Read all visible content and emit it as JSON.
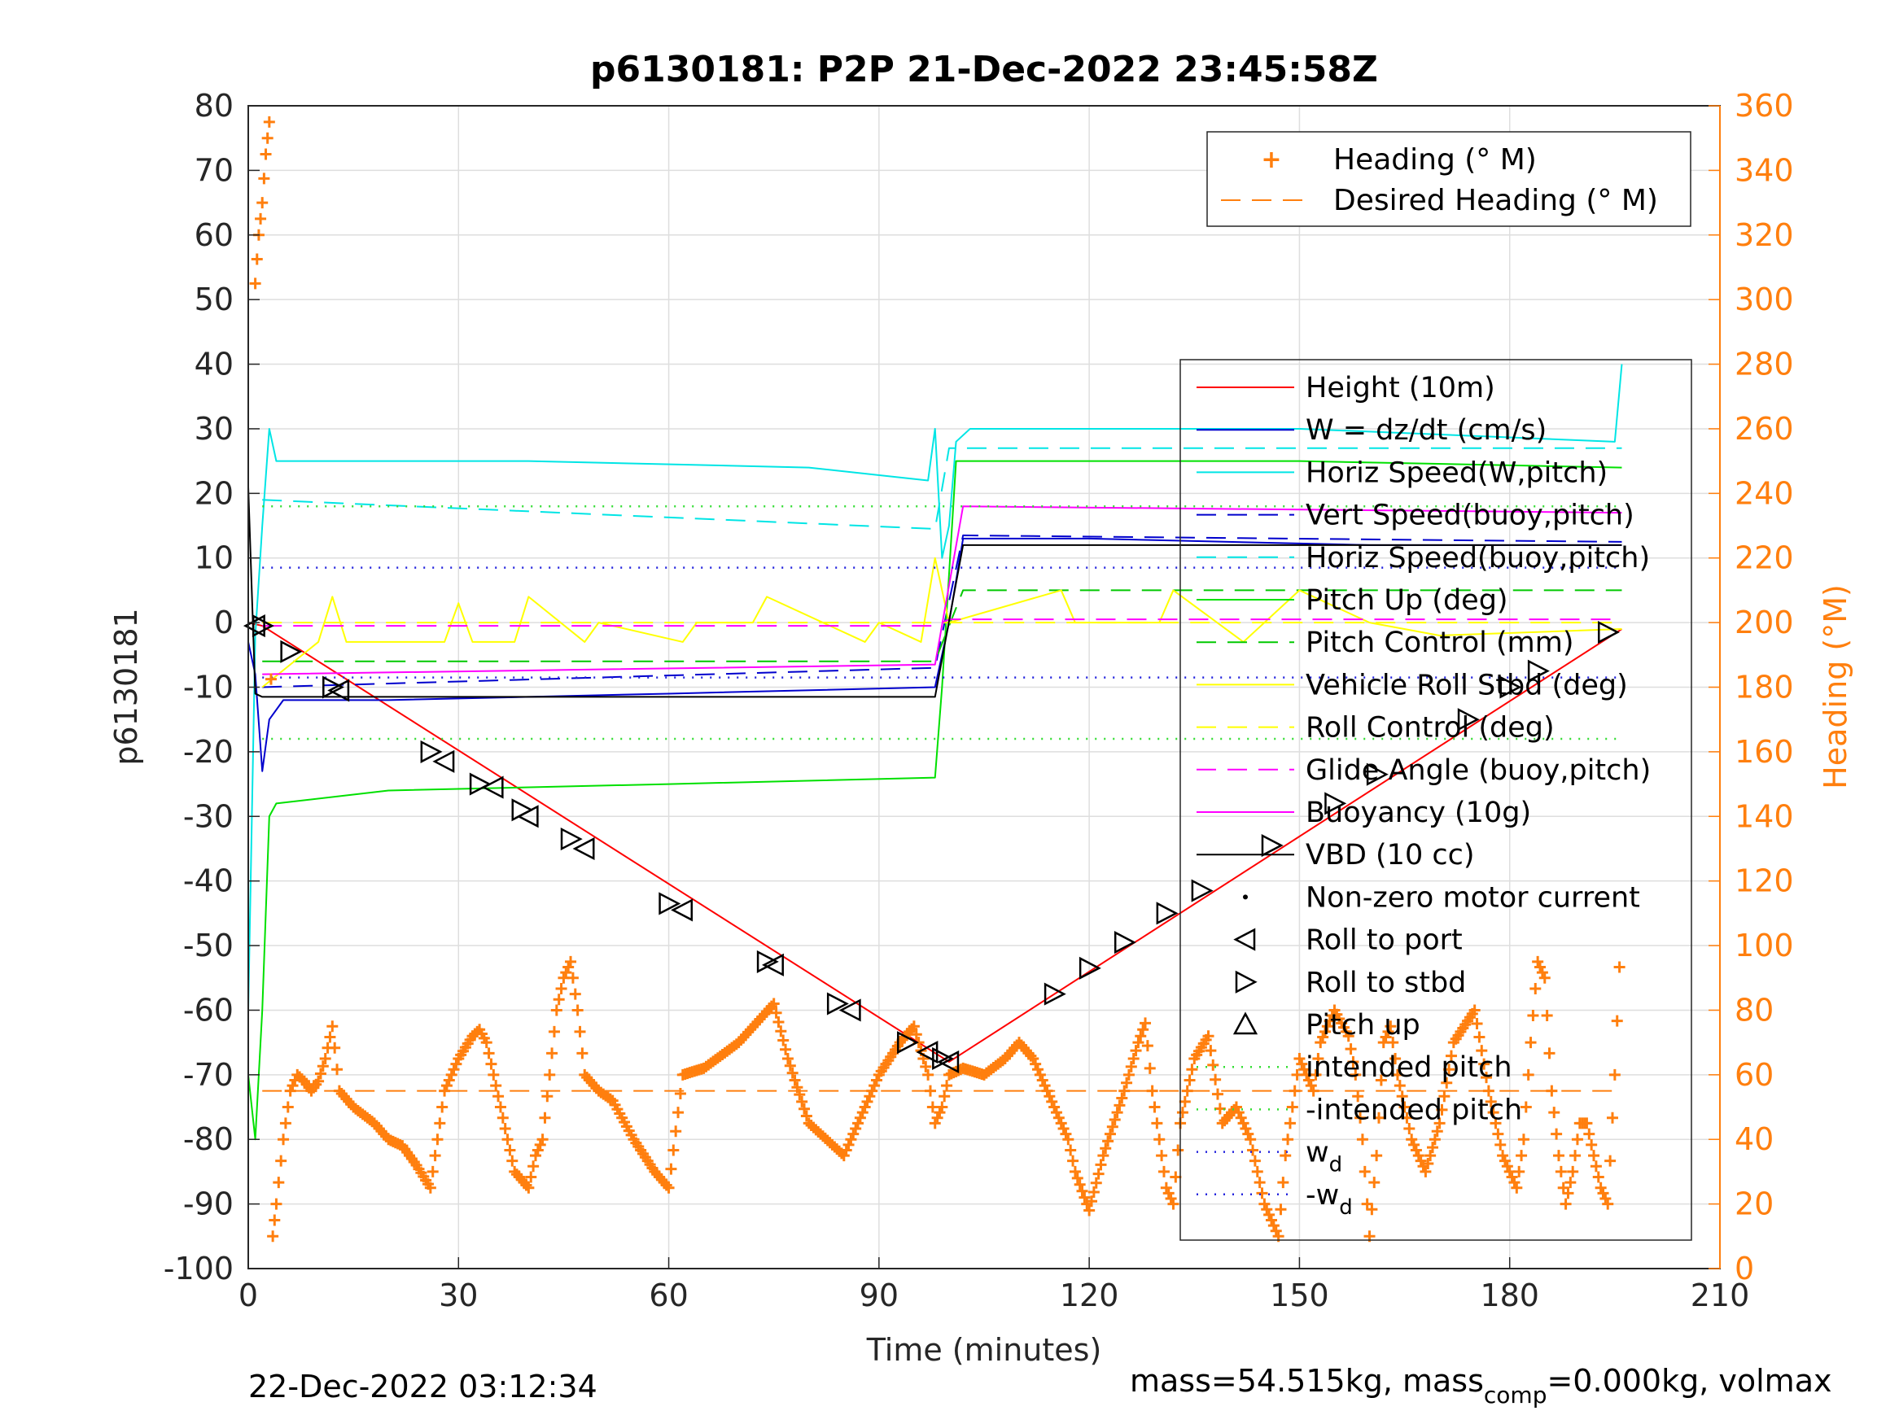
{
  "chart_data": {
    "type": "line",
    "title": "p6130181: P2P 21-Dec-2022 23:45:58Z",
    "xlabel": "Time (minutes)",
    "ylabel": "p6130181",
    "y2label": "Heading (°M)",
    "xlim": [
      0,
      210
    ],
    "ylim": [
      -100,
      80
    ],
    "y2lim": [
      0,
      360
    ],
    "xticks": [
      "0",
      "30",
      "60",
      "90",
      "120",
      "150",
      "180",
      "210"
    ],
    "yticks": [
      "80",
      "70",
      "60",
      "50",
      "40",
      "30",
      "20",
      "10",
      "0",
      "-10",
      "-20",
      "-30",
      "-40",
      "-50",
      "-60",
      "-70",
      "-80",
      "-90",
      "-100"
    ],
    "y2ticks": [
      "360",
      "340",
      "320",
      "300",
      "280",
      "260",
      "240",
      "220",
      "200",
      "180",
      "160",
      "140",
      "120",
      "100",
      "80",
      "60",
      "40",
      "20",
      "0"
    ],
    "grid": true,
    "footer_left": "22-Dec-2022 03:12:34",
    "footer_right_prefix": "mass=54.515kg, mass",
    "footer_right_sub": "comp",
    "footer_right_suffix": "=0.000kg, volmax",
    "colors": {
      "height": "#ff0000",
      "w": "#0000cd",
      "horiz_w": "#00e5e5",
      "vert_buoy": "#0000cd",
      "horiz_buoy": "#00e5e5",
      "pitch": "#00e000",
      "pitch_control": "#00c800",
      "roll": "#ffff00",
      "roll_control": "#ffff00",
      "glide": "#ff00ff",
      "buoyancy": "#ff00ff",
      "vbd": "#000000",
      "heading": "#ff7f0e",
      "markers": "#000000"
    },
    "legend_heading": [
      "Heading (° M)",
      "Desired Heading (° M)"
    ],
    "legend_main": [
      "Height (10m)",
      "W = dz/dt (cm/s)",
      "Horiz Speed(W,pitch)",
      "Vert Speed(buoy,pitch)",
      "Horiz Speed(buoy,pitch)",
      "Pitch Up (deg)",
      "Pitch Control (mm)",
      "Vehicle Roll Stbd (deg)",
      "Roll Control (deg)",
      "Glide Angle (buoy,pitch)",
      "Buoyancy (10g)",
      "VBD (10 cc)",
      "Non-zero motor current",
      "Roll to port",
      "Roll to stbd",
      "Pitch up",
      "intended pitch",
      "-intended pitch",
      "w_d",
      "-w_d"
    ],
    "legend_wd_base": "w",
    "legend_wd_sub": "d",
    "legend_nwd_base": "-w",
    "legend_nwd_sub": "d",
    "series": [
      {
        "name": "Height (10m)",
        "x": [
          0,
          2,
          100,
          196
        ],
        "y": [
          0,
          -0.5,
          -68,
          -1
        ]
      },
      {
        "name": "W = dz/dt (cm/s)",
        "x": [
          0,
          1,
          2,
          3,
          5,
          20,
          60,
          98,
          100,
          102,
          120,
          160,
          196
        ],
        "y": [
          -3,
          -8,
          -23,
          -15,
          -12,
          -12,
          -11,
          -10,
          0,
          13,
          13,
          12,
          12
        ]
      },
      {
        "name": "Horiz Speed(W,pitch)",
        "x": [
          0,
          1,
          2,
          3,
          4,
          10,
          40,
          80,
          97,
          98,
          99,
          100,
          101,
          103,
          150,
          195,
          196
        ],
        "y": [
          -60,
          -2,
          15,
          30,
          25,
          25,
          25,
          24,
          22,
          30,
          10,
          15,
          28,
          30,
          30,
          28,
          40
        ]
      },
      {
        "name": "Vert Speed(buoy,pitch)",
        "x": [
          2,
          98,
          102,
          196
        ],
        "y": [
          -10,
          -7,
          13.5,
          12.5
        ]
      },
      {
        "name": "Horiz Speed(buoy,pitch)",
        "x": [
          2,
          98,
          100,
          196
        ],
        "y": [
          19,
          14.5,
          27,
          27
        ]
      },
      {
        "name": "Pitch Up (deg)",
        "x": [
          0,
          1,
          2,
          3,
          4,
          20,
          60,
          98,
          99,
          101,
          103,
          150,
          196
        ],
        "y": [
          -70,
          -80,
          -60,
          -30,
          -28,
          -26,
          -25,
          -24,
          -10,
          25,
          25,
          25,
          24
        ]
      },
      {
        "name": "Pitch Control (mm)",
        "x": [
          2,
          98,
          102,
          196
        ],
        "y": [
          -6,
          -6,
          5,
          5
        ]
      },
      {
        "name": "Vehicle Roll Stbd (deg)",
        "x": [
          2,
          10,
          12,
          14,
          28,
          30,
          32,
          38,
          40,
          48,
          50,
          62,
          64,
          72,
          74,
          88,
          90,
          96,
          98,
          100,
          116,
          118,
          130,
          132,
          142,
          150,
          160,
          170,
          196
        ],
        "y": [
          -10,
          -3,
          4,
          -3,
          -3,
          3,
          -3,
          -3,
          4,
          -3,
          0,
          -3,
          0,
          0,
          4,
          -3,
          0,
          -3,
          10,
          0,
          5,
          0,
          0,
          5,
          -3,
          5,
          0,
          -2,
          -1
        ]
      },
      {
        "name": "Roll Control (deg)",
        "x": [
          2,
          196
        ],
        "y": [
          0,
          0
        ]
      },
      {
        "name": "Glide Angle (buoy,pitch)",
        "x": [
          2,
          98,
          100,
          196
        ],
        "y": [
          -0.5,
          -0.5,
          0.5,
          0.5
        ]
      },
      {
        "name": "Buoyancy (10g)",
        "x": [
          2,
          98,
          102,
          196
        ],
        "y": [
          -8,
          -6.5,
          18,
          17
        ]
      },
      {
        "name": "VBD (10 cc)",
        "x": [
          0,
          1,
          2,
          98,
          102,
          196
        ],
        "y": [
          21,
          -11,
          -11.5,
          -11.5,
          12,
          12
        ]
      },
      {
        "name": "intended pitch",
        "x": [
          2,
          196
        ],
        "y": [
          18,
          18
        ]
      },
      {
        "name": "-intended pitch",
        "x": [
          2,
          196
        ],
        "y": [
          -18,
          -18
        ]
      },
      {
        "name": "w_d",
        "x": [
          2,
          196
        ],
        "y": [
          8.5,
          8.5
        ]
      },
      {
        "name": "-w_d",
        "x": [
          2,
          196
        ],
        "y": [
          -8.5,
          -8.5
        ]
      }
    ],
    "roll_port_markers": [
      [
        1,
        -0.5
      ],
      [
        13,
        -10.5
      ],
      [
        28,
        -21.5
      ],
      [
        35,
        -25.5
      ],
      [
        40,
        -30
      ],
      [
        48,
        -35
      ],
      [
        62,
        -44.5
      ],
      [
        75,
        -53
      ],
      [
        86,
        -60
      ],
      [
        97,
        -66.5
      ],
      [
        100,
        -68
      ]
    ],
    "roll_stbd_markers": [
      [
        2,
        -0.5
      ],
      [
        6,
        -4.5
      ],
      [
        12,
        -10
      ],
      [
        26,
        -20
      ],
      [
        33,
        -25
      ],
      [
        39,
        -29
      ],
      [
        46,
        -33.5
      ],
      [
        60,
        -43.5
      ],
      [
        74,
        -52.5
      ],
      [
        84,
        -59
      ],
      [
        94,
        -65
      ],
      [
        99,
        -67.5
      ],
      [
        115,
        -57.5
      ],
      [
        120,
        -53.5
      ],
      [
        125,
        -49.5
      ],
      [
        131,
        -45
      ],
      [
        136,
        -41.5
      ],
      [
        146,
        -34.5
      ],
      [
        155,
        -28
      ],
      [
        161,
        -23.5
      ],
      [
        174,
        -15
      ],
      [
        180,
        -10
      ],
      [
        184,
        -7.5
      ],
      [
        194,
        -1.5
      ]
    ],
    "heading": {
      "name": "Heading (° M)",
      "x": [
        1,
        1.5,
        2,
        2.5,
        3,
        3.5,
        4,
        5,
        6,
        7,
        8,
        9,
        10,
        11,
        12,
        13,
        15,
        18,
        20,
        22,
        24,
        26,
        27,
        28,
        30,
        32,
        33,
        34,
        36,
        38,
        40,
        41,
        42,
        44,
        45,
        46,
        47,
        48,
        50,
        52,
        55,
        58,
        60,
        62,
        65,
        70,
        75,
        77,
        80,
        85,
        88,
        90,
        93,
        95,
        97,
        98,
        99,
        100,
        102,
        105,
        108,
        110,
        112,
        115,
        117,
        118,
        120,
        122,
        125,
        127,
        128,
        129,
        130,
        131,
        132,
        133,
        135,
        137,
        139,
        141,
        143,
        145,
        146,
        147,
        148,
        150,
        152,
        153,
        155,
        157,
        158,
        159,
        160,
        161,
        162,
        163,
        164,
        166,
        168,
        170,
        172,
        175,
        177,
        179,
        180,
        181,
        182,
        183,
        184,
        185,
        186,
        187,
        188,
        189,
        190,
        191,
        192,
        193,
        194,
        195,
        196
      ],
      "y": [
        305,
        320,
        330,
        345,
        355,
        10,
        20,
        40,
        55,
        60,
        58,
        55,
        58,
        65,
        75,
        55,
        50,
        45,
        40,
        38,
        32,
        25,
        40,
        55,
        65,
        72,
        74,
        70,
        50,
        30,
        25,
        35,
        40,
        80,
        90,
        95,
        80,
        60,
        55,
        52,
        40,
        30,
        25,
        60,
        62,
        70,
        82,
        65,
        45,
        35,
        50,
        60,
        70,
        75,
        60,
        45,
        50,
        60,
        62,
        60,
        65,
        70,
        65,
        50,
        40,
        30,
        18,
        35,
        55,
        70,
        76,
        55,
        40,
        25,
        20,
        45,
        65,
        72,
        45,
        50,
        40,
        20,
        15,
        10,
        35,
        65,
        55,
        70,
        80,
        72,
        60,
        40,
        10,
        35,
        70,
        75,
        60,
        40,
        30,
        45,
        70,
        80,
        55,
        35,
        30,
        25,
        40,
        70,
        95,
        90,
        55,
        35,
        20,
        30,
        45,
        45,
        35,
        25,
        20,
        60,
        110
      ]
    },
    "desired_heading": {
      "name": "Desired Heading (° M)",
      "x": [
        2,
        196
      ],
      "y": [
        55,
        55
      ]
    }
  }
}
